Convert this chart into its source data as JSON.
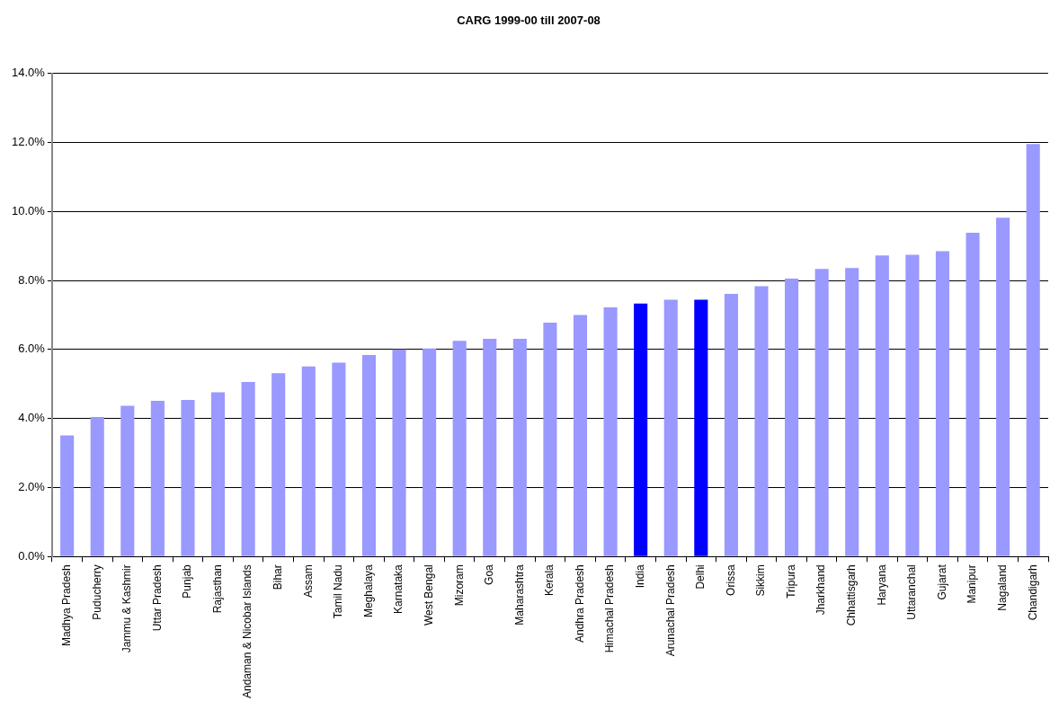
{
  "chart_data": {
    "type": "bar",
    "title": "CARG 1999-00 till 2007-08",
    "categories": [
      "Madhya Pradesh",
      "Puducherry",
      "Jammu & Kashmir",
      "Uttar Pradesh",
      "Punjab",
      "Rajasthan",
      "Andaman & Nicobar Islands",
      "Bihar",
      "Assam",
      "Tamil Nadu",
      "Meghalaya",
      "Karnataka",
      "West Bengal",
      "Mizoram",
      "Goa",
      "Maharashtra",
      "Kerala",
      "Andhra Pradesh",
      "Himachal Pradesh",
      "India",
      "Arunachal Pradesh",
      "Delhi",
      "Orissa",
      "Sikkim",
      "Tripura",
      "Jharkhand",
      "Chhattisgarh",
      "Haryana",
      "Uttaranchal",
      "Gujarat",
      "Manipur",
      "Nagaland",
      "Chandigarh"
    ],
    "values": [
      3.51,
      4.04,
      4.37,
      4.51,
      4.54,
      4.76,
      5.06,
      5.31,
      5.51,
      5.62,
      5.84,
      6.0,
      6.03,
      6.25,
      6.31,
      6.31,
      6.78,
      7.0,
      7.22,
      7.33,
      7.44,
      7.44,
      7.61,
      7.83,
      8.05,
      8.33,
      8.36,
      8.72,
      8.74,
      8.85,
      9.38,
      9.82,
      11.95
    ],
    "colors": [
      "#9999ff",
      "#9999ff",
      "#9999ff",
      "#9999ff",
      "#9999ff",
      "#9999ff",
      "#9999ff",
      "#9999ff",
      "#9999ff",
      "#9999ff",
      "#9999ff",
      "#9999ff",
      "#9999ff",
      "#9999ff",
      "#9999ff",
      "#9999ff",
      "#9999ff",
      "#9999ff",
      "#9999ff",
      "#0000ff",
      "#9999ff",
      "#0000ff",
      "#9999ff",
      "#9999ff",
      "#9999ff",
      "#9999ff",
      "#9999ff",
      "#9999ff",
      "#9999ff",
      "#9999ff",
      "#9999ff",
      "#9999ff",
      "#9999ff"
    ],
    "ylim": [
      0,
      14
    ],
    "yticks": [
      {
        "value": 0,
        "label": "0.0%"
      },
      {
        "value": 2,
        "label": "2.0%"
      },
      {
        "value": 4,
        "label": "4.0%"
      },
      {
        "value": 6,
        "label": "6.0%"
      },
      {
        "value": 8,
        "label": "8.0%"
      },
      {
        "value": 10,
        "label": "10.0%"
      },
      {
        "value": 12,
        "label": "12.0%"
      },
      {
        "value": 14,
        "label": "14.0%"
      }
    ],
    "grid": "y",
    "legend": false
  }
}
